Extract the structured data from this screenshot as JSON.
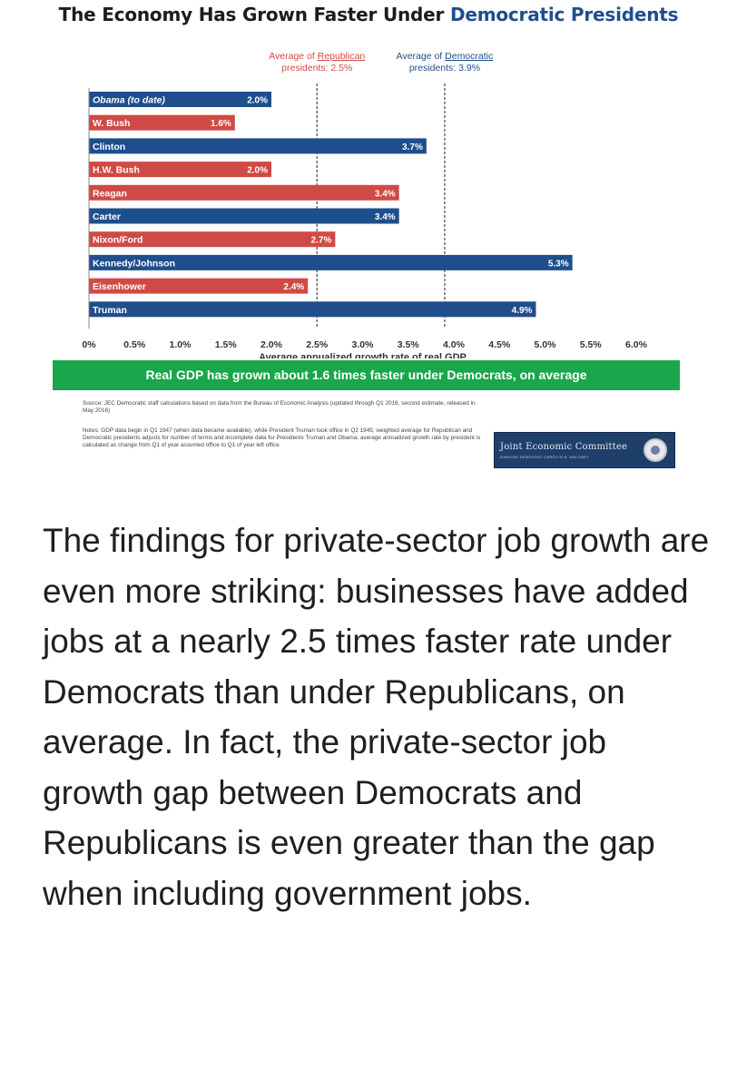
{
  "chart_data": {
    "type": "bar",
    "orientation": "horizontal",
    "title_prefix": "The Economy Has Grown Faster Under ",
    "title_highlight": "Democratic Presidents",
    "xlabel": "Average annualized growth rate of real GDP",
    "xlim": [
      0,
      6
    ],
    "x_ticks": [
      "0%",
      "0.5%",
      "1.0%",
      "1.5%",
      "2.0%",
      "2.5%",
      "3.0%",
      "3.5%",
      "4.0%",
      "4.5%",
      "5.0%",
      "5.5%",
      "6.0%"
    ],
    "grid": false,
    "bars": [
      {
        "label": "Obama (to date)",
        "value": 2.0,
        "value_label": "2.0%",
        "party": "democratic"
      },
      {
        "label": "W. Bush",
        "value": 1.6,
        "value_label": "1.6%",
        "party": "republican"
      },
      {
        "label": "Clinton",
        "value": 3.7,
        "value_label": "3.7%",
        "party": "democratic"
      },
      {
        "label": "H.W. Bush",
        "value": 2.0,
        "value_label": "2.0%",
        "party": "republican"
      },
      {
        "label": "Reagan",
        "value": 3.4,
        "value_label": "3.4%",
        "party": "republican"
      },
      {
        "label": "Carter",
        "value": 3.4,
        "value_label": "3.4%",
        "party": "democratic"
      },
      {
        "label": "Nixon/Ford",
        "value": 2.7,
        "value_label": "2.7%",
        "party": "republican"
      },
      {
        "label": "Kennedy/Johnson",
        "value": 5.3,
        "value_label": "5.3%",
        "party": "democratic"
      },
      {
        "label": "Eisenhower",
        "value": 2.4,
        "value_label": "2.4%",
        "party": "republican"
      },
      {
        "label": "Truman",
        "value": 4.9,
        "value_label": "4.9%",
        "party": "democratic"
      }
    ],
    "reference_lines": [
      {
        "value": 2.5,
        "line1_prefix": "Average of ",
        "line1_party": "Republican",
        "line2": "presidents: 2.5%",
        "party": "republican"
      },
      {
        "value": 3.9,
        "line1_prefix": "Average of ",
        "line1_party": "Democratic",
        "line2": "presidents: 3.9%",
        "party": "democratic"
      }
    ],
    "colors": {
      "democratic": "#1f4e8c",
      "republican": "#d04a45",
      "banner": "#1aa64a"
    }
  },
  "banner_text": "Real GDP has grown about 1.6 times faster under Democrats, on average",
  "source": "Source: JEC Democratic staff calculations based on data from the Bureau of Economic Analysis (updated through Q1 2016, second estimate, released in May 2016)",
  "notes": "Notes: GDP data begin in Q1 1947 (when data became available), while President Truman took office in Q2 1945; weighted average for Republican and Democratic presidents adjusts for number of terms and incomplete data for Presidents Truman and Obama; average annualized growth rate by president is calculated as change from Q1 of year assumed office to Q1 of year left office",
  "logo": {
    "name": "Joint Economic Committee",
    "subtitle": "RANKING DEMOCRAT CAROLYN B. MALONEY",
    "seal_icon": "seal-icon"
  },
  "body_text": "The findings for private-sector job growth are even more striking: businesses have added jobs at a nearly 2.5 times faster rate under Democrats than under Republicans, on average. In fact, the private-sector job growth gap between Democrats and Republicans is even greater than the gap when including government jobs."
}
